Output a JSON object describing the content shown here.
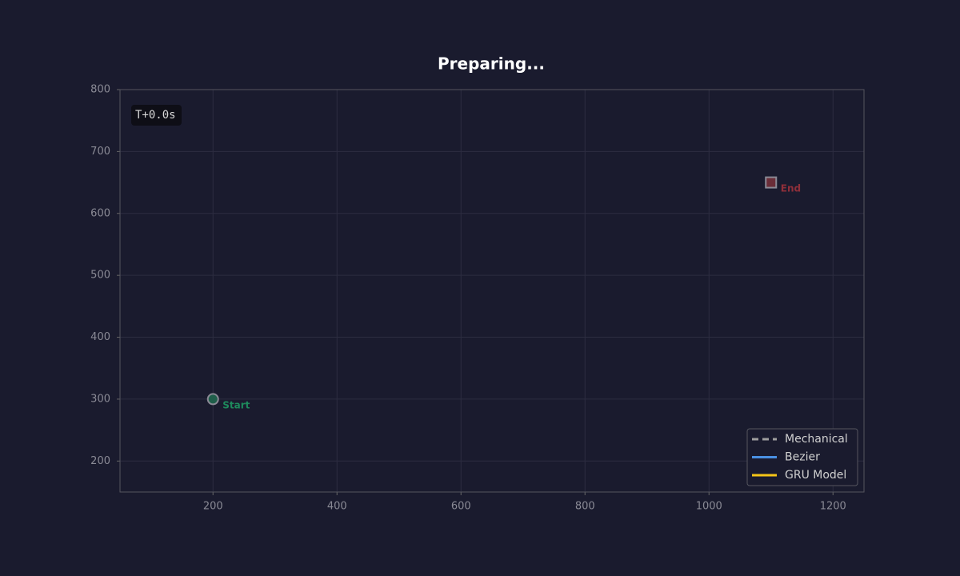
{
  "chart_data": {
    "type": "line",
    "title": "Preparing...",
    "timer": "T+0.0s",
    "xlim": [
      50,
      1250
    ],
    "xticks": [
      200,
      400,
      600,
      800,
      1000,
      1200
    ],
    "ylim": [
      150,
      800
    ],
    "yticks": [
      200,
      300,
      400,
      500,
      600,
      700,
      800
    ],
    "grid": true,
    "legend": "lower right",
    "series": [
      {
        "name": "Mechanical",
        "color": "#9e9e9e",
        "dash": true,
        "x": [],
        "values": []
      },
      {
        "name": "Bezier",
        "color": "#4a90e2",
        "dash": false,
        "x": [],
        "values": []
      },
      {
        "name": "GRU Model",
        "color": "#f5c518",
        "dash": false,
        "x": [],
        "values": []
      }
    ],
    "points": [
      {
        "label": "Start",
        "x": 200,
        "y": 300,
        "color": "#1e8a5c",
        "fill": "#1f5e4a",
        "shape": "circle"
      },
      {
        "label": "End",
        "x": 1100,
        "y": 650,
        "color": "#8f2f3a",
        "fill": "#6a2d38",
        "shape": "square"
      }
    ]
  }
}
